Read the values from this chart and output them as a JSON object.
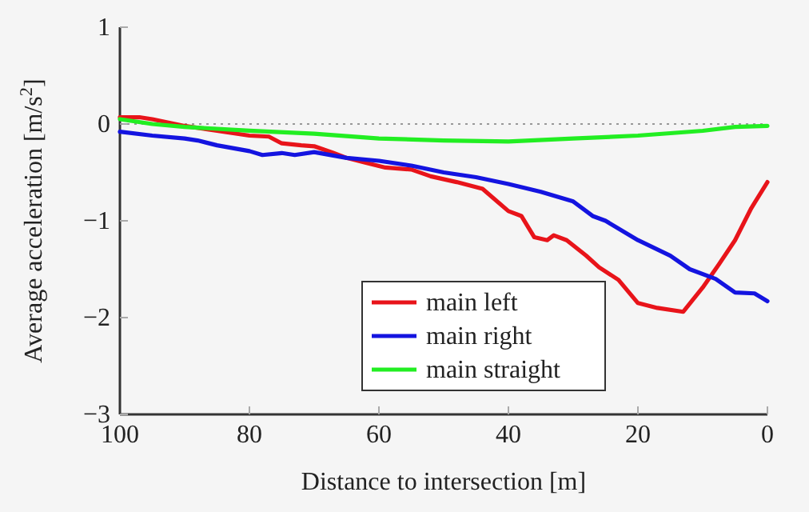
{
  "chart_data": {
    "type": "line",
    "xlabel": "Distance to intersection [m]",
    "ylabel": "Average acceleration [m/s$^{2}$]",
    "xlim": [
      100,
      0
    ],
    "xticks": [
      100,
      80,
      60,
      40,
      20,
      0
    ],
    "ylim": [
      -3,
      1
    ],
    "yticks": [
      {
        "value": -3,
        "label": "−3"
      },
      {
        "value": -2,
        "label": "−2"
      },
      {
        "value": -1,
        "label": "−1"
      },
      0,
      1
    ],
    "grid": false,
    "legend": "bottom",
    "line_style": "solid",
    "marker": "none",
    "ref_lines": [
      {
        "axis": "y",
        "value": 0,
        "label": null,
        "color": "#999999",
        "line_style": "dotted"
      }
    ],
    "series": [
      {
        "name": "main left",
        "color": "#e8141a",
        "x": [
          100,
          97,
          95,
          90,
          85,
          80,
          77,
          75,
          72,
          70,
          67,
          65,
          62,
          59,
          55,
          52,
          48,
          44,
          40,
          38,
          36,
          34,
          33,
          31,
          28,
          26,
          23,
          20,
          17,
          13,
          10,
          7.5,
          5,
          2.5,
          0
        ],
        "values": [
          0.07,
          0.07,
          0.05,
          -0.02,
          -0.07,
          -0.12,
          -0.13,
          -0.2,
          -0.22,
          -0.23,
          -0.3,
          -0.35,
          -0.4,
          -0.45,
          -0.47,
          -0.54,
          -0.6,
          -0.67,
          -0.9,
          -0.95,
          -1.17,
          -1.2,
          -1.15,
          -1.2,
          -1.36,
          -1.48,
          -1.61,
          -1.85,
          -1.9,
          -1.94,
          -1.69,
          -1.45,
          -1.2,
          -0.87,
          -0.6
        ]
      },
      {
        "name": "main right",
        "color": "#1414e0",
        "x": [
          100,
          95,
          90,
          88,
          85,
          80,
          78,
          75,
          73,
          70,
          65,
          60,
          55,
          50,
          45,
          40,
          35,
          30,
          27,
          25,
          20,
          15,
          12,
          8,
          5,
          2,
          0
        ],
        "values": [
          -0.08,
          -0.12,
          -0.15,
          -0.17,
          -0.22,
          -0.28,
          -0.32,
          -0.3,
          -0.32,
          -0.29,
          -0.35,
          -0.38,
          -0.43,
          -0.5,
          -0.55,
          -0.62,
          -0.7,
          -0.8,
          -0.95,
          -1.0,
          -1.2,
          -1.36,
          -1.5,
          -1.6,
          -1.74,
          -1.75,
          -1.83
        ]
      },
      {
        "name": "main straight",
        "color": "#22ee22",
        "x": [
          100,
          95,
          90,
          80,
          70,
          60,
          50,
          40,
          30,
          20,
          10,
          5,
          0
        ],
        "values": [
          0.05,
          0.0,
          -0.03,
          -0.07,
          -0.1,
          -0.15,
          -0.17,
          -0.18,
          -0.15,
          -0.12,
          -0.07,
          -0.03,
          -0.02
        ]
      }
    ]
  }
}
